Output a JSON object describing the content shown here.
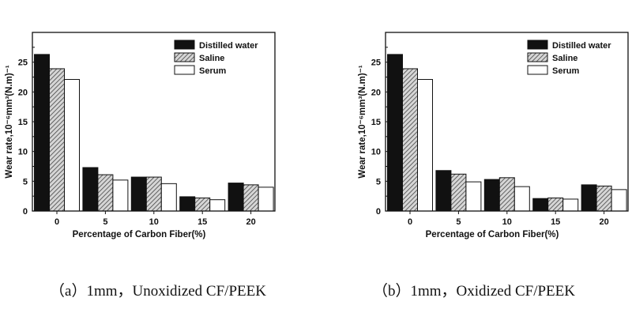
{
  "chart_data": [
    {
      "type": "bar",
      "categories": [
        "0",
        "5",
        "10",
        "15",
        "20"
      ],
      "series": [
        {
          "name": "Distilled water",
          "values": [
            26.3,
            7.3,
            5.7,
            2.4,
            4.7
          ]
        },
        {
          "name": "Saline",
          "values": [
            23.9,
            6.1,
            5.7,
            2.2,
            4.4
          ]
        },
        {
          "name": "Serum",
          "values": [
            22.1,
            5.2,
            4.6,
            1.9,
            4.0
          ]
        }
      ],
      "xlabel": "Percentage of Carbon Fiber(%)",
      "ylabel": "Wear rate,10⁻⁶mm³(N.m)⁻¹",
      "ylim": [
        0,
        30
      ],
      "yticks": [
        "0",
        "5",
        "10",
        "15",
        "20",
        "25"
      ],
      "legend_position": "top-right",
      "caption": "（a）1mm，Unoxidized CF/PEEK"
    },
    {
      "type": "bar",
      "categories": [
        "0",
        "5",
        "10",
        "15",
        "20"
      ],
      "series": [
        {
          "name": "Distilled water",
          "values": [
            26.3,
            6.8,
            5.3,
            2.1,
            4.4
          ]
        },
        {
          "name": "Saline",
          "values": [
            23.9,
            6.2,
            5.6,
            2.2,
            4.2
          ]
        },
        {
          "name": "Serum",
          "values": [
            22.1,
            4.9,
            4.1,
            2.0,
            3.6
          ]
        }
      ],
      "xlabel": "Percentage of Carbon Fiber(%)",
      "ylabel": "Wear rate,10⁻⁶mm³(N.m)⁻¹",
      "ylim": [
        0,
        30
      ],
      "yticks": [
        "0",
        "5",
        "10",
        "15",
        "20",
        "25"
      ],
      "legend_position": "top-right",
      "caption": "（b）1mm，Oxidized CF/PEEK"
    }
  ],
  "colors": {
    "distilled_water": "#111111",
    "saline": "hatched grey",
    "serum": "#ffffff"
  }
}
